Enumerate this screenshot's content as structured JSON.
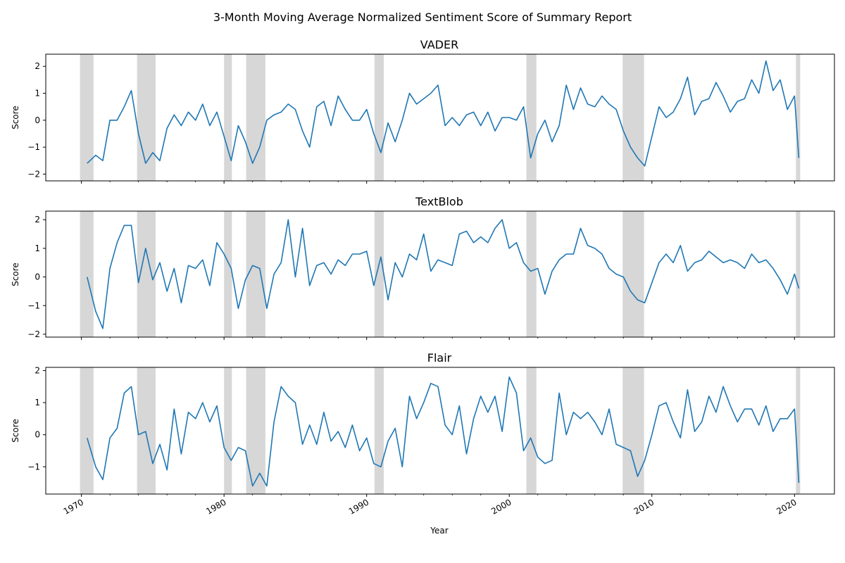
{
  "chart_data": {
    "type": "line",
    "title": "3-Month Moving Average Normalized Sentiment Score of Summary Report",
    "xlabel": "Year",
    "ylabel": "Score",
    "xlim": [
      1967.5,
      2022.8
    ],
    "x_ticks": [
      1970,
      1980,
      1990,
      2000,
      2010,
      2020
    ],
    "line_color": "#1f77b4",
    "shade_color": "#d3d3d3",
    "recessions": [
      [
        1969.9,
        1970.85
      ],
      [
        1973.9,
        1975.2
      ],
      [
        1980.0,
        1980.55
      ],
      [
        1981.55,
        1982.9
      ],
      [
        1990.55,
        1991.2
      ],
      [
        2001.2,
        2001.9
      ],
      [
        2007.95,
        2009.45
      ],
      [
        2020.1,
        2020.4
      ]
    ],
    "panels": [
      {
        "title": "VADER",
        "ylim": [
          -2.25,
          2.45
        ],
        "yticks": [
          -2,
          -1,
          0,
          1,
          2
        ],
        "series": {
          "x": [
            1970.4,
            1971.0,
            1971.5,
            1972.0,
            1972.5,
            1973.0,
            1973.5,
            1974.0,
            1974.5,
            1975.0,
            1975.5,
            1976.0,
            1976.5,
            1977.0,
            1977.5,
            1978.0,
            1978.5,
            1979.0,
            1979.5,
            1980.0,
            1980.5,
            1981.0,
            1981.5,
            1982.0,
            1982.5,
            1983.0,
            1983.5,
            1984.0,
            1984.5,
            1985.0,
            1985.5,
            1986.0,
            1986.5,
            1987.0,
            1987.5,
            1988.0,
            1988.5,
            1989.0,
            1989.5,
            1990.0,
            1990.5,
            1991.0,
            1991.5,
            1992.0,
            1992.5,
            1993.0,
            1993.5,
            1994.0,
            1994.5,
            1995.0,
            1995.5,
            1996.0,
            1996.5,
            1997.0,
            1997.5,
            1998.0,
            1998.5,
            1999.0,
            1999.5,
            2000.0,
            2000.5,
            2001.0,
            2001.5,
            2002.0,
            2002.5,
            2003.0,
            2003.5,
            2004.0,
            2004.5,
            2005.0,
            2005.5,
            2006.0,
            2006.5,
            2007.0,
            2007.5,
            2008.0,
            2008.5,
            2009.0,
            2009.5,
            2010.0,
            2010.5,
            2011.0,
            2011.5,
            2012.0,
            2012.5,
            2013.0,
            2013.5,
            2014.0,
            2014.5,
            2015.0,
            2015.5,
            2016.0,
            2016.5,
            2017.0,
            2017.5,
            2018.0,
            2018.5,
            2019.0,
            2019.5,
            2020.0,
            2020.3
          ],
          "y": [
            -1.6,
            -1.3,
            -1.5,
            0.0,
            0.0,
            0.5,
            1.1,
            -0.5,
            -1.6,
            -1.2,
            -1.5,
            -0.3,
            0.2,
            -0.2,
            0.3,
            0.0,
            0.6,
            -0.2,
            0.3,
            -0.6,
            -1.5,
            -0.2,
            -0.8,
            -1.6,
            -1.0,
            0.0,
            0.2,
            0.3,
            0.6,
            0.4,
            -0.4,
            -1.0,
            0.5,
            0.7,
            -0.2,
            0.9,
            0.4,
            0.0,
            0.0,
            0.4,
            -0.5,
            -1.2,
            -0.1,
            -0.8,
            0.0,
            1.0,
            0.6,
            0.8,
            1.0,
            1.3,
            -0.2,
            0.1,
            -0.2,
            0.2,
            0.3,
            -0.2,
            0.3,
            -0.4,
            0.1,
            0.1,
            0.0,
            0.5,
            -1.4,
            -0.5,
            0.0,
            -0.8,
            -0.2,
            1.3,
            0.4,
            1.2,
            0.6,
            0.5,
            0.9,
            0.6,
            0.4,
            -0.4,
            -1.0,
            -1.4,
            -1.7,
            -0.6,
            0.5,
            0.1,
            0.3,
            0.8,
            1.6,
            0.2,
            0.7,
            0.8,
            1.4,
            0.9,
            0.3,
            0.7,
            0.8,
            1.5,
            1.0,
            2.2,
            1.1,
            1.5,
            0.4,
            0.9,
            -1.4
          ]
        }
      },
      {
        "title": "TextBlob",
        "ylim": [
          -2.1,
          2.3
        ],
        "yticks": [
          -2,
          -1,
          0,
          1,
          2
        ],
        "series": {
          "x": [
            1970.4,
            1971.0,
            1971.5,
            1972.0,
            1972.5,
            1973.0,
            1973.5,
            1974.0,
            1974.5,
            1975.0,
            1975.5,
            1976.0,
            1976.5,
            1977.0,
            1977.5,
            1978.0,
            1978.5,
            1979.0,
            1979.5,
            1980.0,
            1980.5,
            1981.0,
            1981.5,
            1982.0,
            1982.5,
            1983.0,
            1983.5,
            1984.0,
            1984.5,
            1985.0,
            1985.5,
            1986.0,
            1986.5,
            1987.0,
            1987.5,
            1988.0,
            1988.5,
            1989.0,
            1989.5,
            1990.0,
            1990.5,
            1991.0,
            1991.5,
            1992.0,
            1992.5,
            1993.0,
            1993.5,
            1994.0,
            1994.5,
            1995.0,
            1995.5,
            1996.0,
            1996.5,
            1997.0,
            1997.5,
            1998.0,
            1998.5,
            1999.0,
            1999.5,
            2000.0,
            2000.5,
            2001.0,
            2001.5,
            2002.0,
            2002.5,
            2003.0,
            2003.5,
            2004.0,
            2004.5,
            2005.0,
            2005.5,
            2006.0,
            2006.5,
            2007.0,
            2007.5,
            2008.0,
            2008.5,
            2009.0,
            2009.5,
            2010.0,
            2010.5,
            2011.0,
            2011.5,
            2012.0,
            2012.5,
            2013.0,
            2013.5,
            2014.0,
            2014.5,
            2015.0,
            2015.5,
            2016.0,
            2016.5,
            2017.0,
            2017.5,
            2018.0,
            2018.5,
            2019.0,
            2019.5,
            2020.0,
            2020.3
          ],
          "y": [
            0.0,
            -1.2,
            -1.8,
            0.3,
            1.2,
            1.8,
            1.8,
            -0.2,
            1.0,
            -0.1,
            0.5,
            -0.5,
            0.3,
            -0.9,
            0.4,
            0.3,
            0.6,
            -0.3,
            1.2,
            0.8,
            0.3,
            -1.1,
            -0.1,
            0.4,
            0.3,
            -1.1,
            0.1,
            0.5,
            2.0,
            0.0,
            1.7,
            -0.3,
            0.4,
            0.5,
            0.1,
            0.6,
            0.4,
            0.8,
            0.8,
            0.9,
            -0.3,
            0.7,
            -0.8,
            0.5,
            0.0,
            0.8,
            0.6,
            1.5,
            0.2,
            0.6,
            0.5,
            0.4,
            1.5,
            1.6,
            1.2,
            1.4,
            1.2,
            1.7,
            2.0,
            1.0,
            1.2,
            0.5,
            0.2,
            0.3,
            -0.6,
            0.2,
            0.6,
            0.8,
            0.8,
            1.7,
            1.1,
            1.0,
            0.8,
            0.3,
            0.1,
            0.0,
            -0.5,
            -0.8,
            -0.9,
            -0.2,
            0.5,
            0.8,
            0.5,
            1.1,
            0.2,
            0.5,
            0.6,
            0.9,
            0.7,
            0.5,
            0.6,
            0.5,
            0.3,
            0.8,
            0.5,
            0.6,
            0.3,
            -0.1,
            -0.6,
            0.1,
            -0.4
          ]
        }
      },
      {
        "title": "Flair",
        "ylim": [
          -1.85,
          2.1
        ],
        "yticks": [
          -1,
          0,
          1,
          2
        ],
        "series": {
          "x": [
            1970.4,
            1971.0,
            1971.5,
            1972.0,
            1972.5,
            1973.0,
            1973.5,
            1974.0,
            1974.5,
            1975.0,
            1975.5,
            1976.0,
            1976.5,
            1977.0,
            1977.5,
            1978.0,
            1978.5,
            1979.0,
            1979.5,
            1980.0,
            1980.5,
            1981.0,
            1981.5,
            1982.0,
            1982.5,
            1983.0,
            1983.5,
            1984.0,
            1984.5,
            1985.0,
            1985.5,
            1986.0,
            1986.5,
            1987.0,
            1987.5,
            1988.0,
            1988.5,
            1989.0,
            1989.5,
            1990.0,
            1990.5,
            1991.0,
            1991.5,
            1992.0,
            1992.5,
            1993.0,
            1993.5,
            1994.0,
            1994.5,
            1995.0,
            1995.5,
            1996.0,
            1996.5,
            1997.0,
            1997.5,
            1998.0,
            1998.5,
            1999.0,
            1999.5,
            2000.0,
            2000.5,
            2001.0,
            2001.5,
            2002.0,
            2002.5,
            2003.0,
            2003.5,
            2004.0,
            2004.5,
            2005.0,
            2005.5,
            2006.0,
            2006.5,
            2007.0,
            2007.5,
            2008.0,
            2008.5,
            2009.0,
            2009.5,
            2010.0,
            2010.5,
            2011.0,
            2011.5,
            2012.0,
            2012.5,
            2013.0,
            2013.5,
            2014.0,
            2014.5,
            2015.0,
            2015.5,
            2016.0,
            2016.5,
            2017.0,
            2017.5,
            2018.0,
            2018.5,
            2019.0,
            2019.5,
            2020.0,
            2020.3
          ],
          "y": [
            -0.1,
            -1.0,
            -1.4,
            -0.1,
            0.2,
            1.3,
            1.5,
            0.0,
            0.1,
            -0.9,
            -0.3,
            -1.1,
            0.8,
            -0.6,
            0.7,
            0.5,
            1.0,
            0.4,
            0.9,
            -0.4,
            -0.8,
            -0.4,
            -0.5,
            -1.6,
            -1.2,
            -1.6,
            0.4,
            1.5,
            1.2,
            1.0,
            -0.3,
            0.3,
            -0.3,
            0.7,
            -0.2,
            0.1,
            -0.4,
            0.3,
            -0.5,
            -0.1,
            -0.9,
            -1.0,
            -0.2,
            0.2,
            -1.0,
            1.2,
            0.5,
            1.0,
            1.6,
            1.5,
            0.3,
            0.0,
            0.9,
            -0.6,
            0.5,
            1.2,
            0.7,
            1.2,
            0.1,
            1.8,
            1.3,
            -0.5,
            -0.1,
            -0.7,
            -0.9,
            -0.8,
            1.3,
            0.0,
            0.7,
            0.5,
            0.7,
            0.4,
            0.0,
            0.8,
            -0.3,
            -0.4,
            -0.5,
            -1.3,
            -0.8,
            0.0,
            0.9,
            1.0,
            0.4,
            -0.1,
            1.4,
            0.1,
            0.4,
            1.2,
            0.7,
            1.5,
            0.9,
            0.4,
            0.8,
            0.8,
            0.3,
            0.9,
            0.1,
            0.5,
            0.5,
            0.8,
            -1.5
          ]
        }
      }
    ]
  }
}
